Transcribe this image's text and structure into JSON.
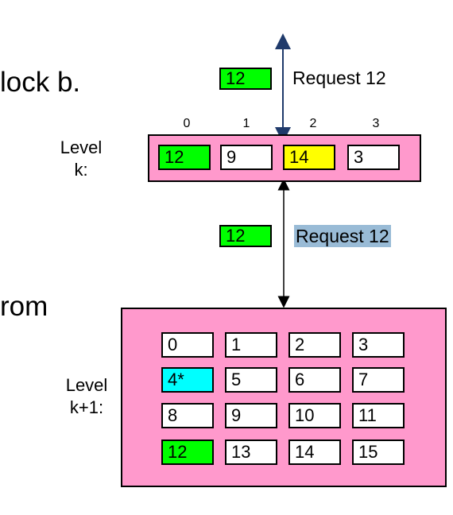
{
  "slide": {
    "frag_top": "lock b.",
    "frag_bottom": "rom"
  },
  "level_k": {
    "label": "Level\nk:",
    "indices": [
      "0",
      "1",
      "2",
      "3"
    ],
    "blocks": [
      "12",
      "9",
      "14",
      "3"
    ]
  },
  "level_k1": {
    "label": "Level\nk+1:",
    "blocks": [
      "0",
      "1",
      "2",
      "3",
      "4*",
      "5",
      "6",
      "7",
      "8",
      "9",
      "10",
      "11",
      "12",
      "13",
      "14",
      "15"
    ]
  },
  "request_top": {
    "block": "12",
    "text": "Request 12"
  },
  "request_mid": {
    "block": "12",
    "text": "Request 12"
  },
  "colors": {
    "cache": "#ff99cc",
    "hit_green": "#00ff00",
    "evict_yellow": "#ffff00",
    "victim_cyan": "#00ffff",
    "request_label_bg": "#99bbd6",
    "arrow_top": "#1f3a6b"
  }
}
